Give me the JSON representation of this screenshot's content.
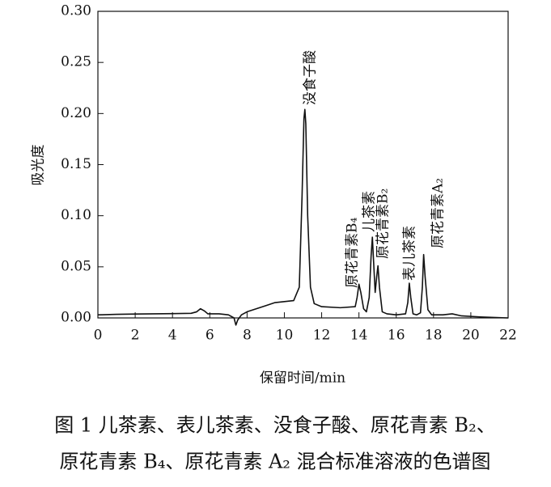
{
  "chart_data": {
    "type": "line",
    "y_label": "吸光度",
    "x_label": "保留时间/min",
    "caption": [
      "图 1   儿茶素、表儿茶素、没食子酸、原花青素 B₂、",
      "原花青素 B₄、原花青素 A₂ 混合标准溶液的色谱图"
    ],
    "xlim": [
      0,
      22
    ],
    "xticks": [
      0,
      2,
      4,
      6,
      8,
      10,
      12,
      14,
      16,
      18,
      20,
      22
    ],
    "ylim": [
      -0.01,
      0.3
    ],
    "yticks": [
      {
        "value": 0,
        "label": "0.00"
      },
      {
        "value": 0.05,
        "label": "0.05"
      },
      {
        "value": 0.1,
        "label": "0.10"
      },
      {
        "value": 0.15,
        "label": "0.15"
      },
      {
        "value": 0.2,
        "label": "0.20"
      },
      {
        "value": 0.25,
        "label": "0.25"
      },
      {
        "value": 0.3,
        "label": "0.30"
      }
    ],
    "series": [
      {
        "color": "#111111",
        "x": [
          0,
          1,
          2,
          3,
          4,
          5,
          5.3,
          5.5,
          5.7,
          5.9,
          6.5,
          7.0,
          7.3,
          7.4,
          7.5,
          7.7,
          8.0,
          8.5,
          9.0,
          9.5,
          10.0,
          10.5,
          10.8,
          10.95,
          11.05,
          11.1,
          11.15,
          11.25,
          11.4,
          11.6,
          12.0,
          13.0,
          13.8,
          13.9,
          14.0,
          14.1,
          14.25,
          14.4,
          14.55,
          14.65,
          14.72,
          14.8,
          14.87,
          14.95,
          15.02,
          15.1,
          15.25,
          15.5,
          16.0,
          16.5,
          16.62,
          16.7,
          16.78,
          16.9,
          17.1,
          17.3,
          17.4,
          17.47,
          17.55,
          17.7,
          17.9,
          18.5,
          19.0,
          19.5,
          20.5,
          22
        ],
        "values": [
          0.003,
          0.0035,
          0.0038,
          0.004,
          0.0042,
          0.0045,
          0.006,
          0.009,
          0.007,
          0.004,
          0.004,
          0.003,
          0.0,
          -0.007,
          -0.002,
          0.003,
          0.006,
          0.009,
          0.012,
          0.015,
          0.016,
          0.017,
          0.03,
          0.12,
          0.195,
          0.204,
          0.19,
          0.1,
          0.03,
          0.014,
          0.011,
          0.01,
          0.011,
          0.02,
          0.033,
          0.025,
          0.009,
          0.006,
          0.02,
          0.06,
          0.079,
          0.05,
          0.025,
          0.04,
          0.051,
          0.03,
          0.006,
          0.004,
          0.003,
          0.004,
          0.015,
          0.034,
          0.02,
          0.004,
          0.003,
          0.005,
          0.03,
          0.062,
          0.04,
          0.008,
          0.003,
          0.003,
          0.004,
          0.002,
          0.001,
          0.0
        ]
      }
    ],
    "annotations": [
      "没食子酸",
      "原花青素B₄",
      "儿茶素",
      "原花青素B₂",
      "表儿茶素",
      "原花青素A₂"
    ]
  }
}
